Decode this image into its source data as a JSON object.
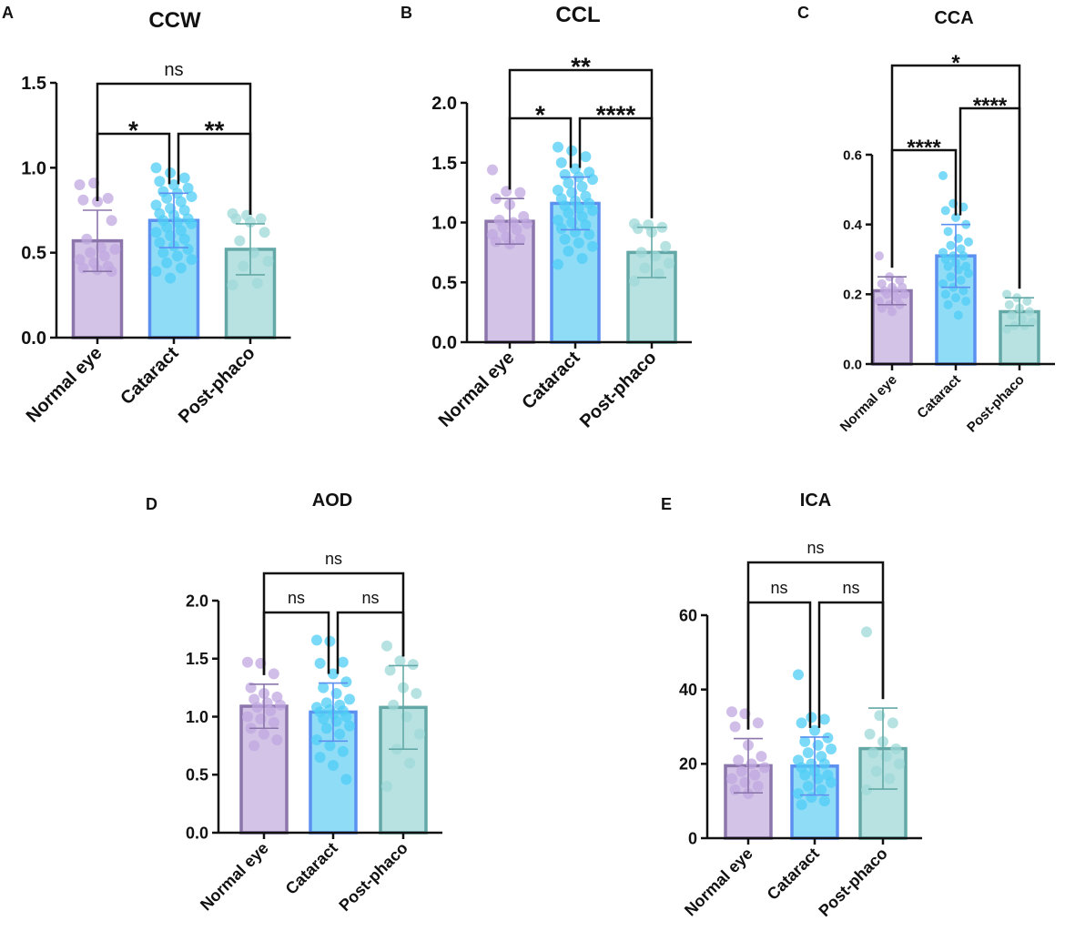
{
  "colors": {
    "normal_fill": "#d3c3e6",
    "normal_stroke": "#8b75ab",
    "normal_dot": "#c0a8e0",
    "cataract_fill": "#8fdcf7",
    "cataract_stroke": "#5b8ff0",
    "cataract_dot": "#4fcdf5",
    "postphaco_fill": "#b7e2e1",
    "postphaco_stroke": "#63a8a6",
    "postphaco_dot": "#9fd8d8",
    "axis": "#111111"
  },
  "chart_data": [
    {
      "panel": "A",
      "title": "CCW",
      "type": "bar",
      "categories": [
        "Normal eye",
        "Cataract",
        "Post-phaco"
      ],
      "values": [
        0.57,
        0.69,
        0.52
      ],
      "sd": [
        0.18,
        0.16,
        0.15
      ],
      "ylim": [
        0,
        1.5
      ],
      "yticks": [
        "0.0",
        "0.5",
        "1.0",
        "1.5"
      ],
      "points": [
        [
          0.9,
          0.91,
          0.82,
          0.81,
          0.8,
          0.69,
          0.58,
          0.53,
          0.52,
          0.5,
          0.48,
          0.46,
          0.44,
          0.42,
          0.41,
          0.4,
          0.39
        ],
        [
          1.0,
          0.97,
          0.94,
          0.92,
          0.9,
          0.88,
          0.86,
          0.85,
          0.83,
          0.82,
          0.8,
          0.78,
          0.76,
          0.75,
          0.73,
          0.72,
          0.7,
          0.69,
          0.68,
          0.67,
          0.65,
          0.63,
          0.62,
          0.6,
          0.58,
          0.56,
          0.54,
          0.52,
          0.5,
          0.48,
          0.46,
          0.44,
          0.41,
          0.39,
          0.35
        ],
        [
          0.73,
          0.72,
          0.7,
          0.7,
          0.68,
          0.62,
          0.57,
          0.5,
          0.45,
          0.42,
          0.32,
          0.31
        ]
      ],
      "brackets": [
        {
          "from": 0,
          "to": 1,
          "label": "*",
          "level": 1
        },
        {
          "from": 1,
          "to": 2,
          "label": "**",
          "level": 1
        },
        {
          "from": 0,
          "to": 2,
          "label": "ns",
          "level": 2
        }
      ]
    },
    {
      "panel": "B",
      "title": "CCL",
      "type": "bar",
      "categories": [
        "Normal eye",
        "Cataract",
        "Post-phaco"
      ],
      "values": [
        1.01,
        1.16,
        0.75
      ],
      "sd": [
        0.19,
        0.22,
        0.21
      ],
      "ylim": [
        0,
        2.0
      ],
      "yticks": [
        "0.0",
        "0.5",
        "1.0",
        "1.5",
        "2.0"
      ],
      "points": [
        [
          1.44,
          1.26,
          1.25,
          1.2,
          1.15,
          1.05,
          1.02,
          1.0,
          0.99,
          0.96,
          0.94,
          0.9,
          0.88,
          0.86,
          0.84,
          0.82
        ],
        [
          1.63,
          1.6,
          1.55,
          1.5,
          1.45,
          1.42,
          1.4,
          1.38,
          1.36,
          1.33,
          1.3,
          1.27,
          1.25,
          1.22,
          1.2,
          1.18,
          1.16,
          1.14,
          1.12,
          1.1,
          1.08,
          1.05,
          1.02,
          1.0,
          0.98,
          0.95,
          0.92,
          0.9,
          0.86,
          0.83,
          0.8,
          0.76,
          0.7,
          0.65
        ],
        [
          0.99,
          0.98,
          0.96,
          0.95,
          0.92,
          0.8,
          0.75,
          0.72,
          0.66,
          0.62,
          0.57,
          0.51
        ]
      ],
      "brackets": [
        {
          "from": 0,
          "to": 1,
          "label": "*",
          "level": 1
        },
        {
          "from": 1,
          "to": 2,
          "label": "****",
          "level": 1
        },
        {
          "from": 0,
          "to": 2,
          "label": "**",
          "level": 2
        }
      ]
    },
    {
      "panel": "C",
      "title": "CCA",
      "type": "bar",
      "categories": [
        "Normal eye",
        "Cataract",
        "Post-phaco"
      ],
      "values": [
        0.21,
        0.31,
        0.15
      ],
      "sd": [
        0.04,
        0.09,
        0.04
      ],
      "ylim": [
        0,
        0.6
      ],
      "yticks": [
        "0.0",
        "0.2",
        "0.4",
        "0.6"
      ],
      "points": [
        [
          0.31,
          0.25,
          0.24,
          0.23,
          0.22,
          0.22,
          0.21,
          0.21,
          0.2,
          0.2,
          0.19,
          0.18,
          0.17,
          0.17,
          0.16,
          0.15
        ],
        [
          0.54,
          0.46,
          0.45,
          0.44,
          0.42,
          0.4,
          0.38,
          0.36,
          0.35,
          0.34,
          0.33,
          0.32,
          0.31,
          0.31,
          0.3,
          0.29,
          0.28,
          0.28,
          0.27,
          0.26,
          0.25,
          0.24,
          0.23,
          0.22,
          0.21,
          0.2,
          0.19,
          0.18,
          0.17,
          0.14
        ],
        [
          0.2,
          0.19,
          0.18,
          0.17,
          0.16,
          0.15,
          0.14,
          0.13,
          0.12,
          0.11,
          0.11,
          0.1
        ]
      ],
      "brackets": [
        {
          "from": 0,
          "to": 1,
          "label": "****",
          "level": 1
        },
        {
          "from": 1,
          "to": 2,
          "label": "****",
          "level": 2
        },
        {
          "from": 0,
          "to": 2,
          "label": "*",
          "level": 3
        }
      ]
    },
    {
      "panel": "D",
      "title": "AOD",
      "type": "bar",
      "categories": [
        "Normal eye",
        "Cataract",
        "Post-phaco"
      ],
      "values": [
        1.09,
        1.04,
        1.08
      ],
      "sd": [
        0.19,
        0.25,
        0.36
      ],
      "ylim": [
        0,
        2.0
      ],
      "yticks": [
        "0.0",
        "0.5",
        "1.0",
        "1.5",
        "2.0"
      ],
      "points": [
        [
          1.47,
          1.46,
          1.37,
          1.25,
          1.2,
          1.17,
          1.15,
          1.12,
          1.1,
          1.08,
          1.05,
          1.0,
          0.98,
          0.95,
          0.9,
          0.85,
          0.8,
          0.75
        ],
        [
          1.66,
          1.65,
          1.47,
          1.46,
          1.37,
          1.3,
          1.25,
          1.2,
          1.15,
          1.12,
          1.1,
          1.08,
          1.06,
          1.05,
          1.04,
          1.02,
          1.0,
          0.98,
          0.96,
          0.92,
          0.9,
          0.85,
          0.8,
          0.75,
          0.7,
          0.65,
          0.58,
          0.46
        ],
        [
          1.61,
          1.48,
          1.45,
          1.4,
          1.25,
          1.2,
          1.1,
          1.0,
          0.85,
          0.72,
          0.6,
          0.4
        ]
      ],
      "brackets": [
        {
          "from": 0,
          "to": 1,
          "label": "ns",
          "level": 1
        },
        {
          "from": 1,
          "to": 2,
          "label": "ns",
          "level": 1
        },
        {
          "from": 0,
          "to": 2,
          "label": "ns",
          "level": 2
        }
      ]
    },
    {
      "panel": "E",
      "title": "ICA",
      "type": "bar",
      "categories": [
        "Normal eye",
        "Cataract",
        "Post-phaco"
      ],
      "values": [
        19.5,
        19.4,
        24.1
      ],
      "sd": [
        7.3,
        7.8,
        10.9
      ],
      "ylim": [
        0,
        60
      ],
      "yticks": [
        "0",
        "20",
        "40",
        "60"
      ],
      "points": [
        [
          34,
          33.5,
          31,
          30,
          25,
          22,
          21,
          20,
          19,
          18,
          17,
          16,
          15,
          14,
          13,
          12
        ],
        [
          44,
          32.5,
          32,
          31,
          29,
          27,
          26,
          25,
          24,
          23,
          22,
          21,
          20,
          20,
          19,
          18,
          17,
          17,
          16,
          15,
          14,
          13,
          12,
          11,
          10,
          9
        ],
        [
          55.5,
          33,
          31,
          28,
          26,
          24,
          23,
          22,
          20,
          18,
          16,
          13
        ]
      ],
      "brackets": [
        {
          "from": 0,
          "to": 1,
          "label": "ns",
          "level": 1
        },
        {
          "from": 1,
          "to": 2,
          "label": "ns",
          "level": 1
        },
        {
          "from": 0,
          "to": 2,
          "label": "ns",
          "level": 2
        }
      ]
    }
  ]
}
